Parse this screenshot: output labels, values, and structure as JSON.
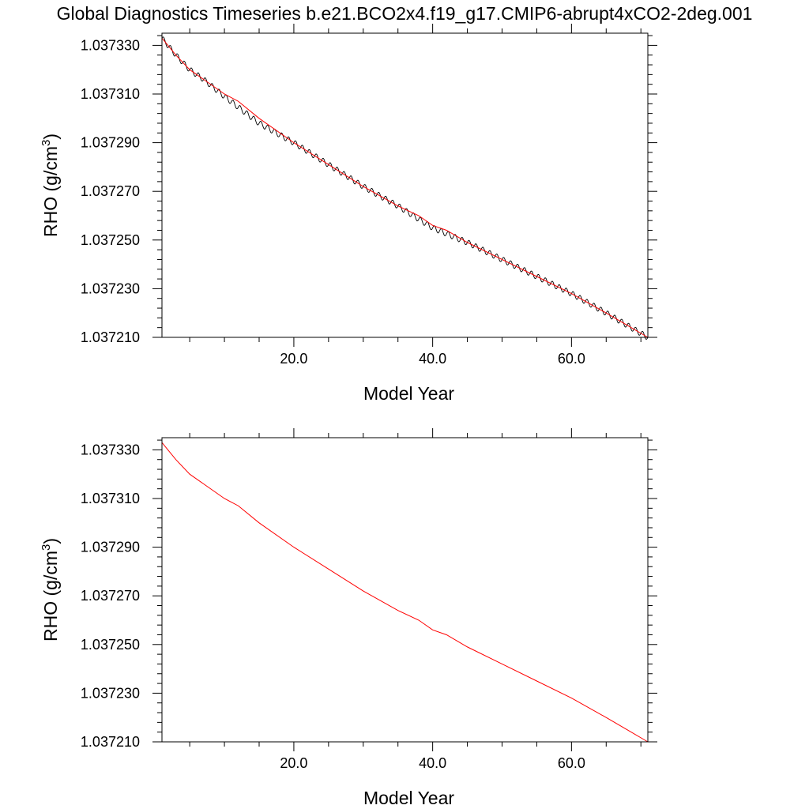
{
  "title": "Global Diagnostics Timeseries b.e21.BCO2x4.f19_g17.CMIP6-abrupt4xCO2-2deg.001",
  "chart_data": [
    {
      "type": "line",
      "xlabel": "Model Year",
      "ylabel_main": "RHO (g/cm",
      "ylabel_sup": "3",
      "ylabel_close": ")",
      "xlim": [
        1,
        71
      ],
      "ylim": [
        1.03721,
        1.037335
      ],
      "x_tick_values": [
        20,
        40,
        60
      ],
      "x_tick_labels": [
        "20.0",
        "40.0",
        "60.0"
      ],
      "y_tick_values": [
        1.03721,
        1.03723,
        1.03725,
        1.03727,
        1.03729,
        1.03731,
        1.03733
      ],
      "y_tick_labels": [
        "1.037210",
        "1.037230",
        "1.037250",
        "1.037270",
        "1.037290",
        "1.037310",
        "1.037330"
      ],
      "series": [
        {
          "color": "#000000",
          "monthly": true,
          "seasonal_amplitude": 1.2e-06,
          "x": [
            1,
            3,
            5,
            7,
            10,
            15,
            20,
            25,
            30,
            35,
            40,
            45,
            50,
            55,
            60,
            65,
            68,
            71
          ],
          "y": [
            1.037333,
            1.037326,
            1.03732,
            1.037316,
            1.037309,
            1.037298,
            1.03729,
            1.037281,
            1.037272,
            1.037264,
            1.037255,
            1.037249,
            1.037242,
            1.037235,
            1.037228,
            1.03722,
            1.037215,
            1.03721
          ]
        },
        {
          "color": "#ff0000",
          "monthly": false,
          "x": [
            1,
            3,
            5,
            7,
            10,
            12,
            15,
            20,
            25,
            30,
            35,
            38,
            40,
            42,
            45,
            50,
            55,
            60,
            65,
            68,
            71
          ],
          "y": [
            1.037333,
            1.037326,
            1.03732,
            1.037316,
            1.03731,
            1.037307,
            1.0373,
            1.03729,
            1.037281,
            1.037272,
            1.037264,
            1.03726,
            1.037256,
            1.037254,
            1.037249,
            1.037242,
            1.037235,
            1.037228,
            1.03722,
            1.037215,
            1.03721
          ]
        }
      ]
    },
    {
      "type": "line",
      "xlabel": "Model Year",
      "ylabel_main": "RHO (g/cm",
      "ylabel_sup": "3",
      "ylabel_close": ")",
      "xlim": [
        1,
        71
      ],
      "ylim": [
        1.03721,
        1.037335
      ],
      "x_tick_values": [
        20,
        40,
        60
      ],
      "x_tick_labels": [
        "20.0",
        "40.0",
        "60.0"
      ],
      "y_tick_values": [
        1.03721,
        1.03723,
        1.03725,
        1.03727,
        1.03729,
        1.03731,
        1.03733
      ],
      "y_tick_labels": [
        "1.037210",
        "1.037230",
        "1.037250",
        "1.037270",
        "1.037290",
        "1.037310",
        "1.037330"
      ],
      "series": [
        {
          "color": "#ff0000",
          "monthly": false,
          "x": [
            1,
            3,
            5,
            7,
            10,
            12,
            15,
            20,
            25,
            30,
            35,
            38,
            40,
            42,
            45,
            50,
            55,
            60,
            65,
            68,
            71
          ],
          "y": [
            1.037333,
            1.037326,
            1.03732,
            1.037316,
            1.03731,
            1.037307,
            1.0373,
            1.03729,
            1.037281,
            1.037272,
            1.037264,
            1.03726,
            1.037256,
            1.037254,
            1.037249,
            1.037242,
            1.037235,
            1.037228,
            1.03722,
            1.037215,
            1.03721
          ]
        }
      ]
    }
  ]
}
